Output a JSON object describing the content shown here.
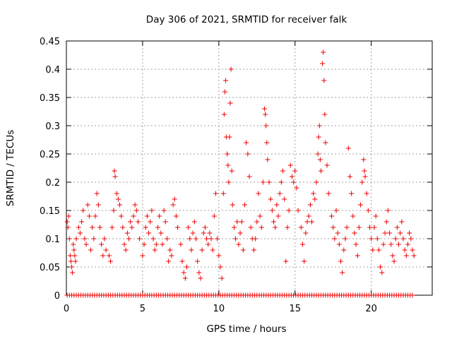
{
  "chart_data": {
    "type": "scatter",
    "title": "Day 306 of 2021, SRMTID for receiver falk",
    "xlabel": "GPS time / hours",
    "ylabel": "SRMTID / TECUs",
    "xlim": [
      0,
      24
    ],
    "ylim": [
      0,
      0.45
    ],
    "grid": true,
    "marker": "+",
    "color": "#ee0000",
    "x_ticks": [
      0,
      5,
      10,
      15,
      20
    ],
    "x_tick_labels": [
      "0",
      "5",
      "10",
      "15",
      "20"
    ],
    "y_ticks": [
      0,
      0.05,
      0.1,
      0.15,
      0.2,
      0.25,
      0.3,
      0.35,
      0.4,
      0.45
    ],
    "y_tick_labels": [
      "0",
      "0.05",
      "0.1",
      "0.15",
      "0.2",
      "0.25",
      "0.3",
      "0.35",
      "0.4",
      "0.45"
    ],
    "series": [
      {
        "points": [
          [
            0.05,
            0.13
          ],
          [
            0.1,
            0.12
          ],
          [
            0.15,
            0.14
          ],
          [
            0.2,
            0.1
          ],
          [
            0.25,
            0.07
          ],
          [
            0.3,
            0.06
          ],
          [
            0.35,
            0.05
          ],
          [
            0.4,
            0.04
          ],
          [
            0.45,
            0.09
          ],
          [
            0.5,
            0.08
          ],
          [
            0.55,
            0.07
          ],
          [
            0.6,
            0.06
          ],
          [
            0.65,
            0.1
          ],
          [
            0.8,
            0.12
          ],
          [
            0.9,
            0.11
          ],
          [
            1.0,
            0.13
          ],
          [
            1.1,
            0.15
          ],
          [
            1.2,
            0.1
          ],
          [
            1.3,
            0.09
          ],
          [
            1.4,
            0.16
          ],
          [
            1.5,
            0.14
          ],
          [
            1.6,
            0.08
          ],
          [
            1.7,
            0.12
          ],
          [
            1.8,
            0.1
          ],
          [
            1.9,
            0.14
          ],
          [
            2.0,
            0.18
          ],
          [
            2.1,
            0.16
          ],
          [
            2.2,
            0.12
          ],
          [
            2.3,
            0.09
          ],
          [
            2.4,
            0.07
          ],
          [
            2.5,
            0.1
          ],
          [
            2.6,
            0.08
          ],
          [
            2.8,
            0.07
          ],
          [
            2.9,
            0.06
          ],
          [
            3.0,
            0.12
          ],
          [
            3.1,
            0.15
          ],
          [
            3.15,
            0.22
          ],
          [
            3.2,
            0.21
          ],
          [
            3.3,
            0.18
          ],
          [
            3.4,
            0.17
          ],
          [
            3.5,
            0.16
          ],
          [
            3.6,
            0.14
          ],
          [
            3.7,
            0.12
          ],
          [
            3.8,
            0.09
          ],
          [
            3.9,
            0.08
          ],
          [
            4.0,
            0.11
          ],
          [
            4.1,
            0.1
          ],
          [
            4.2,
            0.13
          ],
          [
            4.3,
            0.12
          ],
          [
            4.4,
            0.14
          ],
          [
            4.5,
            0.16
          ],
          [
            4.6,
            0.15
          ],
          [
            4.7,
            0.13
          ],
          [
            4.8,
            0.1
          ],
          [
            5.0,
            0.07
          ],
          [
            5.1,
            0.09
          ],
          [
            5.2,
            0.12
          ],
          [
            5.3,
            0.14
          ],
          [
            5.4,
            0.11
          ],
          [
            5.5,
            0.13
          ],
          [
            5.6,
            0.15
          ],
          [
            5.7,
            0.1
          ],
          [
            5.8,
            0.08
          ],
          [
            5.9,
            0.09
          ],
          [
            6.0,
            0.12
          ],
          [
            6.1,
            0.14
          ],
          [
            6.2,
            0.11
          ],
          [
            6.3,
            0.09
          ],
          [
            6.4,
            0.15
          ],
          [
            6.5,
            0.13
          ],
          [
            6.6,
            0.1
          ],
          [
            6.7,
            0.06
          ],
          [
            6.8,
            0.08
          ],
          [
            6.9,
            0.07
          ],
          [
            7.0,
            0.16
          ],
          [
            7.1,
            0.17
          ],
          [
            7.2,
            0.14
          ],
          [
            7.3,
            0.12
          ],
          [
            7.5,
            0.09
          ],
          [
            7.6,
            0.06
          ],
          [
            7.7,
            0.04
          ],
          [
            7.8,
            0.03
          ],
          [
            7.9,
            0.05
          ],
          [
            8.0,
            0.12
          ],
          [
            8.1,
            0.1
          ],
          [
            8.2,
            0.08
          ],
          [
            8.3,
            0.11
          ],
          [
            8.4,
            0.13
          ],
          [
            8.5,
            0.1
          ],
          [
            8.6,
            0.06
          ],
          [
            8.7,
            0.04
          ],
          [
            8.8,
            0.03
          ],
          [
            8.9,
            0.08
          ],
          [
            9.0,
            0.11
          ],
          [
            9.1,
            0.12
          ],
          [
            9.2,
            0.1
          ],
          [
            9.3,
            0.09
          ],
          [
            9.4,
            0.11
          ],
          [
            9.5,
            0.1
          ],
          [
            9.6,
            0.08
          ],
          [
            9.7,
            0.14
          ],
          [
            9.8,
            0.18
          ],
          [
            9.9,
            0.1
          ],
          [
            10.0,
            0.07
          ],
          [
            10.1,
            0.05
          ],
          [
            10.2,
            0.03
          ],
          [
            10.3,
            0.18
          ],
          [
            10.35,
            0.32
          ],
          [
            10.4,
            0.36
          ],
          [
            10.45,
            0.38
          ],
          [
            10.5,
            0.28
          ],
          [
            10.55,
            0.25
          ],
          [
            10.6,
            0.23
          ],
          [
            10.65,
            0.2
          ],
          [
            10.7,
            0.28
          ],
          [
            10.75,
            0.34
          ],
          [
            10.8,
            0.4
          ],
          [
            10.85,
            0.22
          ],
          [
            10.9,
            0.16
          ],
          [
            11.0,
            0.12
          ],
          [
            11.1,
            0.1
          ],
          [
            11.2,
            0.13
          ],
          [
            11.3,
            0.09
          ],
          [
            11.4,
            0.11
          ],
          [
            11.5,
            0.13
          ],
          [
            11.6,
            0.08
          ],
          [
            11.7,
            0.16
          ],
          [
            11.8,
            0.27
          ],
          [
            11.9,
            0.25
          ],
          [
            12.0,
            0.21
          ],
          [
            12.1,
            0.12
          ],
          [
            12.2,
            0.1
          ],
          [
            12.3,
            0.08
          ],
          [
            12.4,
            0.1
          ],
          [
            12.5,
            0.13
          ],
          [
            12.6,
            0.18
          ],
          [
            12.7,
            0.14
          ],
          [
            12.8,
            0.12
          ],
          [
            12.9,
            0.2
          ],
          [
            13.0,
            0.33
          ],
          [
            13.05,
            0.32
          ],
          [
            13.1,
            0.3
          ],
          [
            13.15,
            0.27
          ],
          [
            13.2,
            0.24
          ],
          [
            13.3,
            0.2
          ],
          [
            13.4,
            0.17
          ],
          [
            13.5,
            0.15
          ],
          [
            13.6,
            0.13
          ],
          [
            13.7,
            0.12
          ],
          [
            13.8,
            0.16
          ],
          [
            13.9,
            0.14
          ],
          [
            14.0,
            0.18
          ],
          [
            14.1,
            0.2
          ],
          [
            14.2,
            0.22
          ],
          [
            14.3,
            0.17
          ],
          [
            14.4,
            0.06
          ],
          [
            14.5,
            0.12
          ],
          [
            14.6,
            0.15
          ],
          [
            14.7,
            0.23
          ],
          [
            14.8,
            0.21
          ],
          [
            14.9,
            0.2
          ],
          [
            15.0,
            0.22
          ],
          [
            15.1,
            0.19
          ],
          [
            15.2,
            0.15
          ],
          [
            15.4,
            0.12
          ],
          [
            15.5,
            0.09
          ],
          [
            15.6,
            0.06
          ],
          [
            15.7,
            0.11
          ],
          [
            15.8,
            0.13
          ],
          [
            15.9,
            0.14
          ],
          [
            16.0,
            0.16
          ],
          [
            16.1,
            0.13
          ],
          [
            16.2,
            0.18
          ],
          [
            16.3,
            0.17
          ],
          [
            16.4,
            0.2
          ],
          [
            16.5,
            0.25
          ],
          [
            16.55,
            0.28
          ],
          [
            16.6,
            0.3
          ],
          [
            16.65,
            0.24
          ],
          [
            16.7,
            0.22
          ],
          [
            16.8,
            0.41
          ],
          [
            16.85,
            0.43
          ],
          [
            16.9,
            0.38
          ],
          [
            16.95,
            0.32
          ],
          [
            17.0,
            0.27
          ],
          [
            17.1,
            0.23
          ],
          [
            17.2,
            0.18
          ],
          [
            17.4,
            0.14
          ],
          [
            17.5,
            0.12
          ],
          [
            17.6,
            0.1
          ],
          [
            17.7,
            0.15
          ],
          [
            17.8,
            0.11
          ],
          [
            17.9,
            0.09
          ],
          [
            18.0,
            0.06
          ],
          [
            18.1,
            0.04
          ],
          [
            18.2,
            0.08
          ],
          [
            18.3,
            0.1
          ],
          [
            18.4,
            0.12
          ],
          [
            18.5,
            0.26
          ],
          [
            18.6,
            0.21
          ],
          [
            18.7,
            0.18
          ],
          [
            18.8,
            0.14
          ],
          [
            18.9,
            0.11
          ],
          [
            19.0,
            0.09
          ],
          [
            19.1,
            0.07
          ],
          [
            19.2,
            0.12
          ],
          [
            19.3,
            0.16
          ],
          [
            19.4,
            0.2
          ],
          [
            19.5,
            0.24
          ],
          [
            19.55,
            0.22
          ],
          [
            19.6,
            0.21
          ],
          [
            19.7,
            0.18
          ],
          [
            19.8,
            0.15
          ],
          [
            19.9,
            0.12
          ],
          [
            20.0,
            0.1
          ],
          [
            20.1,
            0.08
          ],
          [
            20.2,
            0.12
          ],
          [
            20.3,
            0.14
          ],
          [
            20.4,
            0.1
          ],
          [
            20.5,
            0.08
          ],
          [
            20.6,
            0.05
          ],
          [
            20.7,
            0.04
          ],
          [
            20.8,
            0.09
          ],
          [
            20.9,
            0.11
          ],
          [
            21.0,
            0.13
          ],
          [
            21.1,
            0.15
          ],
          [
            21.2,
            0.11
          ],
          [
            21.3,
            0.09
          ],
          [
            21.4,
            0.07
          ],
          [
            21.5,
            0.06
          ],
          [
            21.6,
            0.1
          ],
          [
            21.7,
            0.12
          ],
          [
            21.8,
            0.09
          ],
          [
            21.9,
            0.11
          ],
          [
            22.0,
            0.13
          ],
          [
            22.1,
            0.1
          ],
          [
            22.2,
            0.08
          ],
          [
            22.3,
            0.07
          ],
          [
            22.4,
            0.09
          ],
          [
            22.5,
            0.11
          ],
          [
            22.6,
            0.1
          ],
          [
            22.7,
            0.08
          ],
          [
            22.8,
            0.07
          ]
        ]
      }
    ],
    "zero_points_x": [
      0.05,
      0.2,
      0.35,
      0.5,
      0.65,
      0.8,
      0.95,
      1.1,
      1.25,
      1.4,
      1.55,
      1.7,
      1.85,
      2.0,
      2.15,
      2.3,
      2.45,
      2.6,
      2.75,
      2.9,
      3.05,
      3.2,
      3.35,
      3.5,
      3.65,
      3.8,
      3.95,
      4.1,
      4.25,
      4.4,
      4.55,
      4.7,
      4.85,
      5.0,
      5.15,
      5.3,
      5.45,
      5.6,
      5.75,
      5.9,
      6.05,
      6.2,
      6.35,
      6.5,
      6.65,
      6.8,
      6.95,
      7.1,
      7.25,
      7.4,
      7.55,
      7.7,
      7.85,
      8.0,
      8.15,
      8.3,
      8.45,
      8.6,
      8.75,
      8.9,
      9.05,
      9.2,
      9.35,
      9.5,
      9.65,
      9.8,
      9.95,
      10.1,
      10.25,
      10.4,
      10.55,
      10.7,
      10.85,
      11.0,
      11.15,
      11.3,
      11.45,
      11.6,
      11.75,
      11.9,
      12.05,
      12.2,
      12.35,
      12.5,
      12.65,
      12.8,
      12.95,
      13.1,
      13.25,
      13.4,
      13.55,
      13.7,
      13.85,
      14.0,
      14.15,
      14.3,
      14.45,
      14.6,
      14.75,
      14.9,
      15.05,
      15.2,
      15.35,
      15.5,
      15.65,
      15.8,
      15.95,
      16.1,
      16.25,
      16.4,
      16.55,
      16.7,
      16.85,
      17.0,
      17.15,
      17.3,
      17.45,
      17.6,
      17.75,
      17.9,
      18.05,
      18.2,
      18.35,
      18.5,
      18.65,
      18.8,
      18.95,
      19.1,
      19.25,
      19.4,
      19.55,
      19.7,
      19.85,
      20.0,
      20.15,
      20.3,
      20.45,
      20.6,
      20.75,
      20.9,
      21.05,
      21.2,
      21.35,
      21.5,
      21.65,
      21.8,
      21.95,
      22.1,
      22.25,
      22.4,
      22.55,
      22.7
    ]
  }
}
